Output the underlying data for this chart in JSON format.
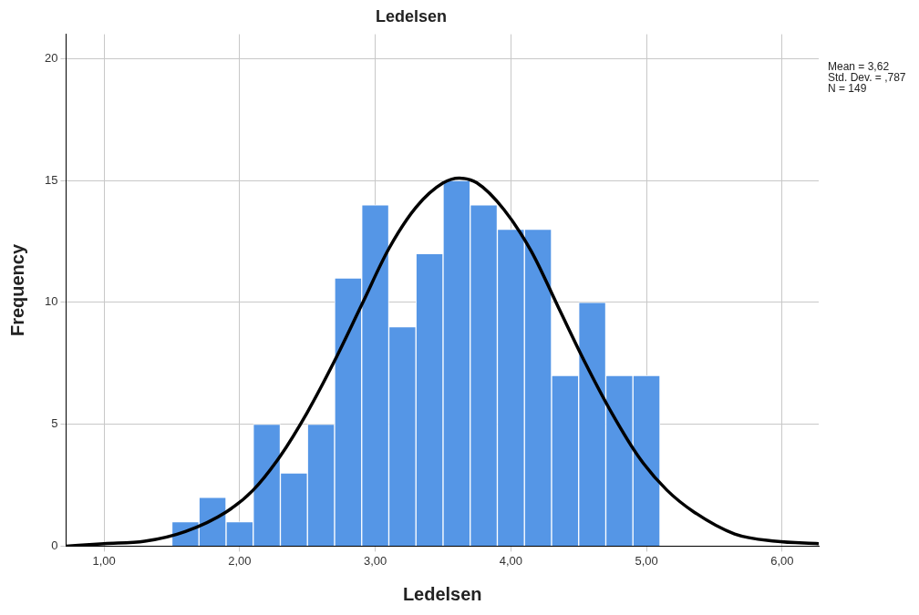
{
  "chart_data": {
    "type": "histogram",
    "title": "Ledelsen",
    "xlabel": "Ledelsen",
    "ylabel": "Frequency",
    "bins": [
      1.5,
      1.7,
      1.9,
      2.1,
      2.3,
      2.5,
      2.7,
      2.9,
      3.1,
      3.3,
      3.5,
      3.7,
      3.9,
      4.1,
      4.3,
      4.5,
      4.7,
      4.9,
      5.1
    ],
    "values": [
      1,
      2,
      1,
      5,
      3,
      5,
      11,
      14,
      9,
      12,
      15,
      14,
      13,
      13,
      7,
      10,
      7,
      7
    ],
    "color": "#5596e6",
    "series": [
      {
        "type": "line",
        "color": "#000000",
        "x": [
          0.72,
          1.0,
          1.3,
          1.6,
          1.9,
          2.1,
          2.3,
          2.5,
          2.7,
          2.9,
          3.1,
          3.3,
          3.5,
          3.62,
          3.75,
          3.95,
          4.15,
          4.35,
          4.55,
          4.75,
          4.95,
          5.15,
          5.35,
          5.65,
          5.95,
          6.27
        ],
        "values": [
          0.0,
          0.1,
          0.2,
          0.6,
          1.4,
          2.3,
          3.7,
          5.5,
          7.6,
          9.9,
          12.2,
          13.9,
          14.9,
          15.1,
          14.9,
          13.8,
          12.1,
          9.8,
          7.5,
          5.4,
          3.6,
          2.3,
          1.4,
          0.5,
          0.2,
          0.1
        ]
      }
    ],
    "xlim": [
      0.72,
      6.27
    ],
    "xticks": [
      {
        "value": 1,
        "label": "1,00"
      },
      {
        "value": 2,
        "label": "2,00"
      },
      {
        "value": 3,
        "label": "3,00"
      },
      {
        "value": 4,
        "label": "4,00"
      },
      {
        "value": 5,
        "label": "5,00"
      },
      {
        "value": 6,
        "label": "6,00"
      }
    ],
    "ylim": [
      0,
      21
    ],
    "yticks": [
      0,
      5,
      10,
      15,
      20
    ],
    "grid": true,
    "legend": false,
    "marker": "none",
    "annotations": [
      "Mean = 3,62",
      "Std. Dev. = ,787",
      "N = 149"
    ]
  }
}
